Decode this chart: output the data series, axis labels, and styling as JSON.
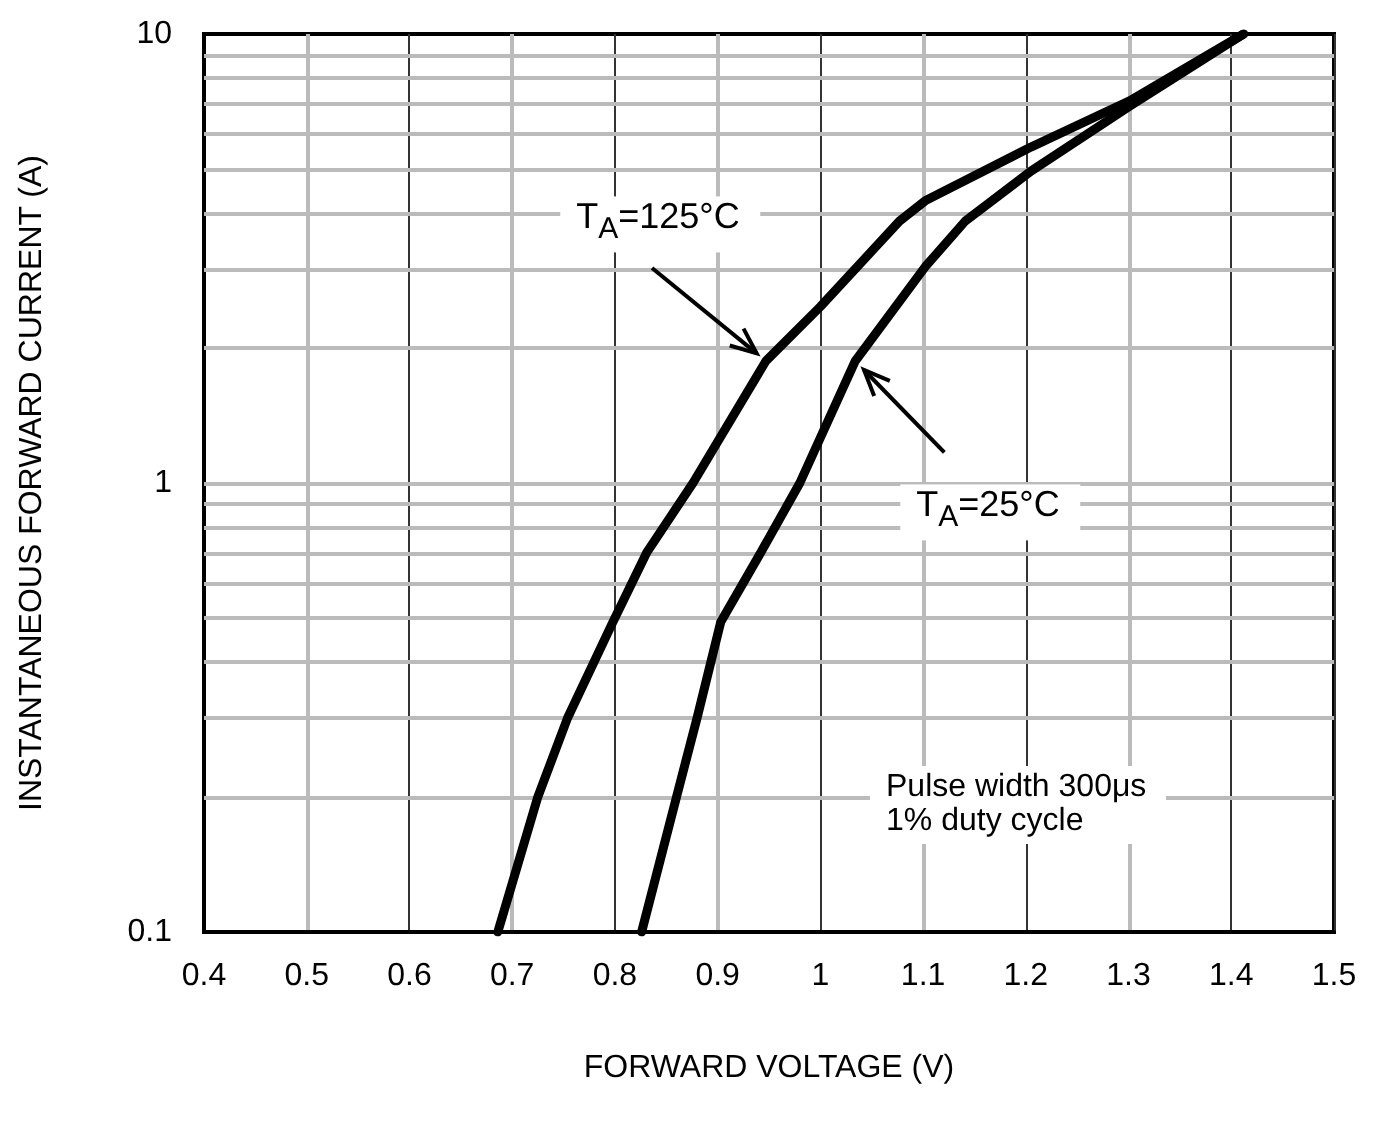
{
  "chart_data": {
    "type": "line",
    "xlabel": "FORWARD VOLTAGE (V)",
    "ylabel": "INSTANTANEOUS FORWARD CURRENT (A)",
    "xlim": [
      0.4,
      1.5
    ],
    "xticks": [
      0.4,
      0.5,
      0.6,
      0.7,
      0.8,
      0.9,
      1,
      1.1,
      1.2,
      1.3,
      1.4,
      1.5
    ],
    "ylim": [
      0.1,
      10
    ],
    "yticks": [
      0.1,
      1,
      10
    ],
    "log": "y",
    "grid": true,
    "marker": "none",
    "line_style": "solid",
    "series": [
      {
        "color": "#000000",
        "x": [
          0.686,
          0.725,
          0.754,
          0.798,
          0.831,
          0.876,
          0.947,
          1.0,
          1.077,
          1.102,
          1.205,
          1.301,
          1.412
        ],
        "values": [
          0.1,
          0.2,
          0.3,
          0.49,
          0.7,
          1,
          1.87,
          2.47,
          3.83,
          4.25,
          5.6,
          7.1,
          10
        ]
      },
      {
        "color": "#000000",
        "x": [
          0.826,
          0.86,
          0.88,
          0.903,
          0.942,
          0.98,
          1.034,
          1.102,
          1.141,
          1.205,
          1.301,
          1.412
        ],
        "values": [
          0.1,
          0.2,
          0.3,
          0.49,
          0.7,
          1,
          1.87,
          3.03,
          3.83,
          4.95,
          6.9,
          10
        ]
      }
    ],
    "annotations": [
      {
        "text": "T$_{A}$=125°C",
        "x": 0.947,
        "y": 1.87
      },
      {
        "text": "T$_{A}$=25°C",
        "x": 1.034,
        "y": 1.87
      },
      "Pulse width 300μs\n1% duty cycle"
    ]
  }
}
